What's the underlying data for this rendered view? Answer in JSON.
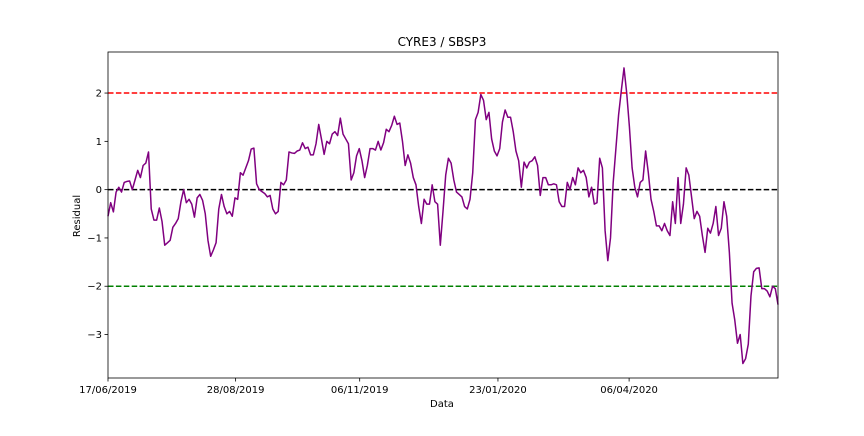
{
  "chart_data": {
    "type": "line",
    "title": "CYRE3 / SBSP3",
    "xlabel": "Data",
    "ylabel": "Residual",
    "x_start": "17/06/2019",
    "x_end": "29/06/2020",
    "xticks": [
      "17/06/2019",
      "28/08/2019",
      "06/11/2019",
      "23/01/2020",
      "06/04/2020"
    ],
    "yticks": [
      -3,
      -2,
      -1,
      0,
      1,
      2
    ],
    "ytick_labels": [
      "−3",
      "−2",
      "−1",
      "0",
      "1",
      "2"
    ],
    "ylim": [
      -3.9,
      2.85
    ],
    "grid": false,
    "legend": "none",
    "series": [
      {
        "color": "#800080",
        "values": [
          -0.55,
          -0.27,
          -0.46,
          -0.05,
          0.05,
          -0.05,
          0.15,
          0.17,
          0.18,
          0.0,
          0.2,
          0.4,
          0.25,
          0.5,
          0.55,
          0.78,
          -0.4,
          -0.63,
          -0.63,
          -0.38,
          -0.66,
          -1.15,
          -1.1,
          -1.05,
          -0.78,
          -0.7,
          -0.6,
          -0.25,
          0.0,
          -0.27,
          -0.2,
          -0.3,
          -0.57,
          -0.17,
          -0.1,
          -0.22,
          -0.5,
          -1.05,
          -1.38,
          -1.25,
          -1.1,
          -0.4,
          -0.1,
          -0.35,
          -0.5,
          -0.45,
          -0.55,
          -0.17,
          -0.2,
          0.35,
          0.3,
          0.45,
          0.6,
          0.84,
          0.86,
          0.12,
          0.0,
          -0.04,
          -0.08,
          -0.15,
          -0.12,
          -0.4,
          -0.5,
          -0.45,
          0.15,
          0.1,
          0.2,
          0.78,
          0.76,
          0.75,
          0.8,
          0.82,
          0.97,
          0.85,
          0.88,
          0.72,
          0.72,
          0.95,
          1.35,
          1.05,
          0.73,
          1.0,
          0.95,
          1.15,
          1.2,
          1.12,
          1.48,
          1.15,
          1.05,
          0.95,
          0.2,
          0.35,
          0.7,
          0.85,
          0.6,
          0.25,
          0.5,
          0.85,
          0.85,
          0.82,
          1.0,
          0.82,
          0.97,
          1.25,
          1.2,
          1.33,
          1.52,
          1.35,
          1.38,
          1.0,
          0.5,
          0.72,
          0.55,
          0.25,
          0.1,
          -0.35,
          -0.7,
          -0.2,
          -0.3,
          -0.3,
          0.1,
          -0.25,
          -0.3,
          -1.15,
          -0.45,
          0.3,
          0.65,
          0.55,
          0.2,
          -0.05,
          -0.1,
          -0.15,
          -0.35,
          -0.4,
          -0.2,
          0.35,
          1.45,
          1.6,
          1.97,
          1.85,
          1.45,
          1.6,
          1.05,
          0.8,
          0.7,
          0.85,
          1.4,
          1.65,
          1.5,
          1.5,
          1.2,
          0.8,
          0.6,
          0.05,
          0.57,
          0.45,
          0.57,
          0.6,
          0.68,
          0.5,
          -0.12,
          0.25,
          0.25,
          0.1,
          0.1,
          0.12,
          0.1,
          -0.25,
          -0.35,
          -0.35,
          0.15,
          0.0,
          0.25,
          0.1,
          0.45,
          0.35,
          0.4,
          0.25,
          -0.15,
          0.05,
          -0.3,
          -0.27,
          0.65,
          0.45,
          -0.85,
          -1.47,
          -1.0,
          0.15,
          0.85,
          1.55,
          2.05,
          2.52,
          2.0,
          1.3,
          0.45,
          0.05,
          -0.15,
          0.15,
          0.2,
          0.8,
          0.35,
          -0.2,
          -0.45,
          -0.75,
          -0.75,
          -0.85,
          -0.7,
          -0.85,
          -0.95,
          -0.25,
          -0.7,
          0.25,
          -0.7,
          -0.3,
          0.45,
          0.3,
          -0.15,
          -0.6,
          -0.45,
          -0.55,
          -0.95,
          -1.3,
          -0.8,
          -0.9,
          -0.7,
          -0.35,
          -0.95,
          -0.8,
          -0.25,
          -0.55,
          -1.3,
          -2.35,
          -2.7,
          -3.18,
          -3.0,
          -3.6,
          -3.5,
          -3.2,
          -2.2,
          -1.7,
          -1.63,
          -1.62,
          -2.05,
          -2.05,
          -2.1,
          -2.22,
          -2.0,
          -2.05,
          -2.38
        ]
      }
    ],
    "hlines": [
      {
        "y": 2,
        "color": "#ff0000",
        "style": "dashed"
      },
      {
        "y": 0,
        "color": "#000000",
        "style": "dashed"
      },
      {
        "y": -2,
        "color": "#008000",
        "style": "dashed"
      }
    ]
  }
}
